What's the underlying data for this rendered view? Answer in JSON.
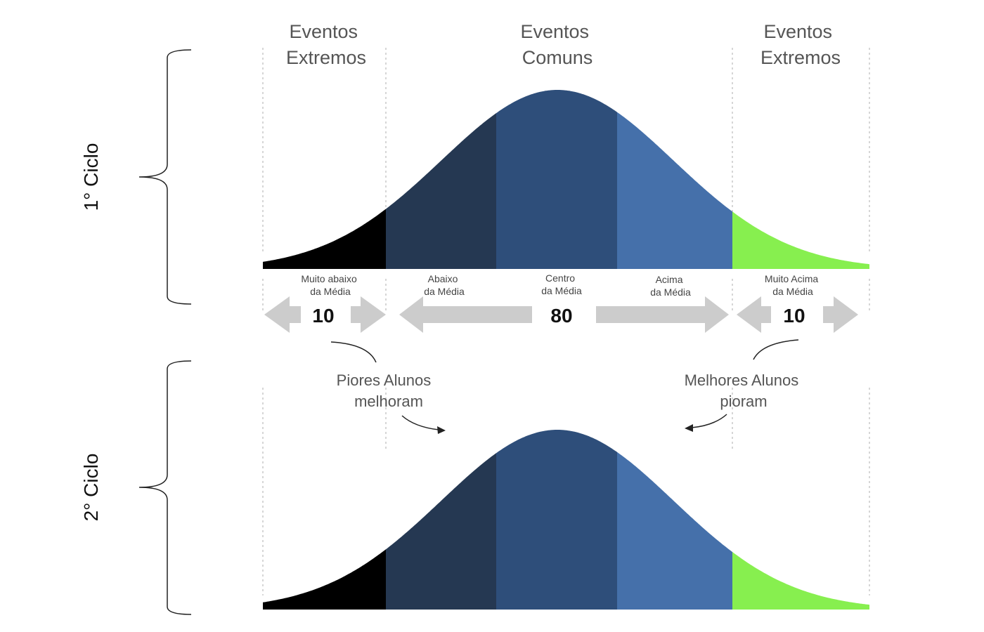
{
  "headers": {
    "left": [
      "Eventos",
      "Extremos"
    ],
    "center": [
      "Eventos",
      "Comuns"
    ],
    "right": [
      "Eventos",
      "Extremos"
    ]
  },
  "cycles": {
    "first": "1° Ciclo",
    "second": "2° Ciclo"
  },
  "regions": [
    {
      "label": [
        "Muito abaixo",
        "da Média"
      ],
      "color": "#000000"
    },
    {
      "label": [
        "Abaixo",
        "da Média"
      ],
      "color": "#253852"
    },
    {
      "label": [
        "Centro",
        "da Média"
      ],
      "color": "#2e4e7a"
    },
    {
      "label": [
        "Acima",
        "da Média"
      ],
      "color": "#4570aa"
    },
    {
      "label": [
        "Muito Acima",
        "da Média"
      ],
      "color": "#87ef4f"
    }
  ],
  "counts": {
    "left": "10",
    "center": "80",
    "right": "10"
  },
  "annotations": {
    "worst": [
      "Piores Alunos",
      "melhoram"
    ],
    "best": [
      "Melhores Alunos",
      "pioram"
    ]
  }
}
